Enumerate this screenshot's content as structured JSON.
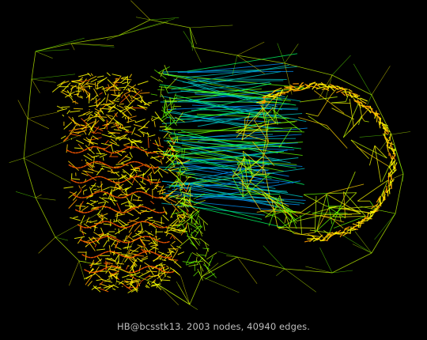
{
  "caption": "HB@bcsstk13. 2003 nodes, 40940 edges.",
  "colors": {
    "background": "#000000",
    "caption": "#bdbdbd",
    "edge_palette": [
      "#ff5a00",
      "#ff9a00",
      "#ffd200",
      "#ffff00",
      "#c8ff00",
      "#66ff00",
      "#00ff66",
      "#00c8c8",
      "#0096ff"
    ]
  }
}
